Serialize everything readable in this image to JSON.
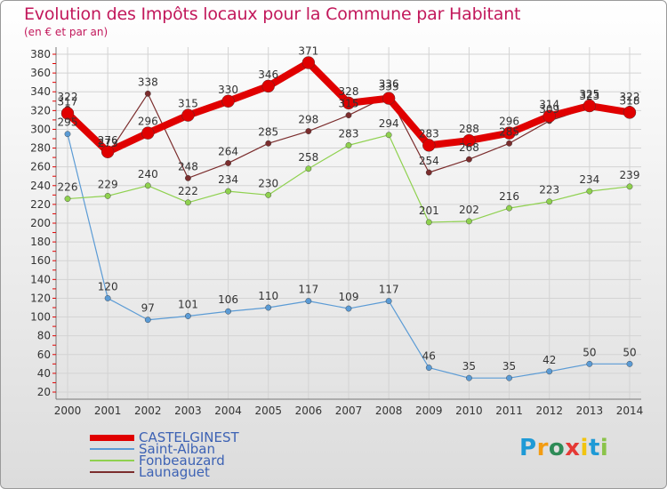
{
  "title": "Evolution des Impôts locaux pour la Commune par Habitant",
  "subtitle": "(en € et par an)",
  "logo": {
    "text": "Proxiti",
    "letters": [
      {
        "ch": "P",
        "color": "#1e9ad6"
      },
      {
        "ch": "r",
        "color": "#f39c12"
      },
      {
        "ch": "o",
        "color": "#2e8b57"
      },
      {
        "ch": "x",
        "color": "#e53935"
      },
      {
        "ch": "i",
        "color": "#f1c40f"
      },
      {
        "ch": "t",
        "color": "#1e9ad6"
      },
      {
        "ch": "i",
        "color": "#8bc34a"
      }
    ]
  },
  "chart_data": {
    "type": "line",
    "title": "Evolution des Impôts locaux pour la Commune par Habitant",
    "subtitle": "(en € et par an)",
    "categories": [
      "2000",
      "2001",
      "2002",
      "2003",
      "2004",
      "2005",
      "2006",
      "2007",
      "2008",
      "2009",
      "2010",
      "2011",
      "2012",
      "2013",
      "2014"
    ],
    "ylim": [
      20,
      380
    ],
    "yticks": [
      20,
      40,
      60,
      80,
      100,
      120,
      140,
      160,
      180,
      200,
      220,
      240,
      260,
      280,
      300,
      320,
      340,
      360,
      380
    ],
    "grid": true,
    "legend_position": "bottom-left",
    "series": [
      {
        "name": "CASTELGINEST",
        "color": "#e00000",
        "values": [
          317,
          276,
          296,
          315,
          330,
          346,
          371,
          328,
          333,
          283,
          288,
          296,
          314,
          325,
          318
        ]
      },
      {
        "name": "Saint-Alban",
        "color": "#5b9bd5",
        "values": [
          295,
          120,
          97,
          101,
          106,
          110,
          117,
          109,
          117,
          46,
          35,
          35,
          42,
          50,
          50
        ]
      },
      {
        "name": "Fonbeauzard",
        "color": "#8fd14f",
        "values": [
          226,
          229,
          240,
          222,
          234,
          230,
          258,
          283,
          294,
          201,
          202,
          216,
          223,
          234,
          239
        ]
      },
      {
        "name": "Launaguet",
        "color": "#7b2d2d",
        "values": [
          322,
          273,
          338,
          248,
          264,
          285,
          298,
          315,
          336,
          254,
          268,
          285,
          309,
          323,
          322
        ]
      }
    ]
  }
}
